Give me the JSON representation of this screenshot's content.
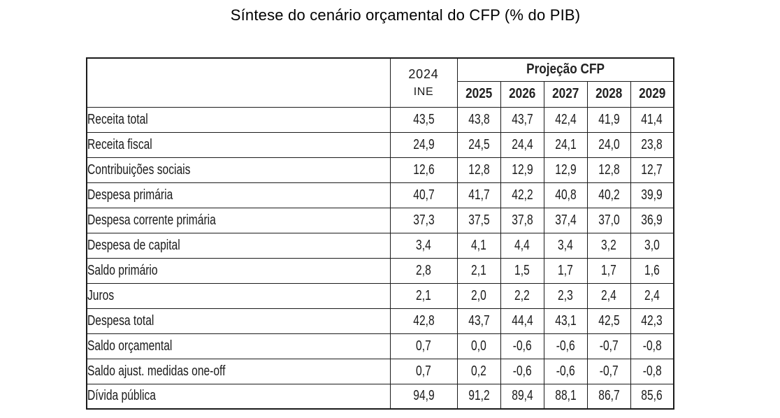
{
  "title": "Síntese do cenário orçamental do CFP (% do PIB)",
  "table": {
    "base_column": {
      "year": "2024",
      "source": "INE"
    },
    "projection_header": "Projeção CFP",
    "years": [
      "2025",
      "2026",
      "2027",
      "2028",
      "2029"
    ],
    "rows": [
      {
        "label": "Receita total",
        "ine2024": "43,5",
        "values": [
          "43,8",
          "43,7",
          "42,4",
          "41,9",
          "41,4"
        ]
      },
      {
        "label": "Receita fiscal",
        "ine2024": "24,9",
        "values": [
          "24,5",
          "24,4",
          "24,1",
          "24,0",
          "23,8"
        ]
      },
      {
        "label": "Contribuições sociais",
        "ine2024": "12,6",
        "values": [
          "12,8",
          "12,9",
          "12,9",
          "12,8",
          "12,7"
        ]
      },
      {
        "label": "Despesa primária",
        "ine2024": "40,7",
        "values": [
          "41,7",
          "42,2",
          "40,8",
          "40,2",
          "39,9"
        ]
      },
      {
        "label": "Despesa corrente primária",
        "ine2024": "37,3",
        "values": [
          "37,5",
          "37,8",
          "37,4",
          "37,0",
          "36,9"
        ]
      },
      {
        "label": "Despesa de capital",
        "ine2024": "3,4",
        "values": [
          "4,1",
          "4,4",
          "3,4",
          "3,2",
          "3,0"
        ]
      },
      {
        "label": "Saldo primário",
        "ine2024": "2,8",
        "values": [
          "2,1",
          "1,5",
          "1,7",
          "1,7",
          "1,6"
        ]
      },
      {
        "label": "Juros",
        "ine2024": "2,1",
        "values": [
          "2,0",
          "2,2",
          "2,3",
          "2,4",
          "2,4"
        ]
      },
      {
        "label": "Despesa total",
        "ine2024": "42,8",
        "values": [
          "43,7",
          "44,4",
          "43,1",
          "42,5",
          "42,3"
        ]
      },
      {
        "label": "Saldo orçamental",
        "ine2024": "0,7",
        "values": [
          "0,0",
          "-0,6",
          "-0,6",
          "-0,7",
          "-0,8"
        ]
      },
      {
        "label": "Saldo ajust. medidas one-off",
        "ine2024": "0,7",
        "values": [
          "0,2",
          "-0,6",
          "-0,6",
          "-0,7",
          "-0,8"
        ]
      },
      {
        "label": "Dívida pública",
        "ine2024": "94,9",
        "values": [
          "91,2",
          "89,4",
          "88,1",
          "86,7",
          "85,6"
        ]
      }
    ]
  },
  "chart_data": {
    "type": "table",
    "title": "Síntese do cenário orçamental do CFP (% do PIB)",
    "unit": "% do PIB",
    "columns": [
      "2024 INE",
      "2025",
      "2026",
      "2027",
      "2028",
      "2029"
    ],
    "column_groups": [
      {
        "label": "Projeção CFP",
        "columns": [
          "2025",
          "2026",
          "2027",
          "2028",
          "2029"
        ]
      }
    ],
    "rows": [
      {
        "label": "Receita total",
        "values": [
          43.5,
          43.8,
          43.7,
          42.4,
          41.9,
          41.4
        ]
      },
      {
        "label": "Receita fiscal",
        "values": [
          24.9,
          24.5,
          24.4,
          24.1,
          24.0,
          23.8
        ]
      },
      {
        "label": "Contribuições sociais",
        "values": [
          12.6,
          12.8,
          12.9,
          12.9,
          12.8,
          12.7
        ]
      },
      {
        "label": "Despesa primária",
        "values": [
          40.7,
          41.7,
          42.2,
          40.8,
          40.2,
          39.9
        ]
      },
      {
        "label": "Despesa corrente primária",
        "values": [
          37.3,
          37.5,
          37.8,
          37.4,
          37.0,
          36.9
        ]
      },
      {
        "label": "Despesa de capital",
        "values": [
          3.4,
          4.1,
          4.4,
          3.4,
          3.2,
          3.0
        ]
      },
      {
        "label": "Saldo primário",
        "values": [
          2.8,
          2.1,
          1.5,
          1.7,
          1.7,
          1.6
        ]
      },
      {
        "label": "Juros",
        "values": [
          2.1,
          2.0,
          2.2,
          2.3,
          2.4,
          2.4
        ]
      },
      {
        "label": "Despesa total",
        "values": [
          42.8,
          43.7,
          44.4,
          43.1,
          42.5,
          42.3
        ]
      },
      {
        "label": "Saldo orçamental",
        "values": [
          0.7,
          0.0,
          -0.6,
          -0.6,
          -0.7,
          -0.8
        ]
      },
      {
        "label": "Saldo ajust. medidas one-off",
        "values": [
          0.7,
          0.2,
          -0.6,
          -0.6,
          -0.7,
          -0.8
        ]
      },
      {
        "label": "Dívida pública",
        "values": [
          94.9,
          91.2,
          89.4,
          88.1,
          86.7,
          85.6
        ]
      }
    ]
  }
}
